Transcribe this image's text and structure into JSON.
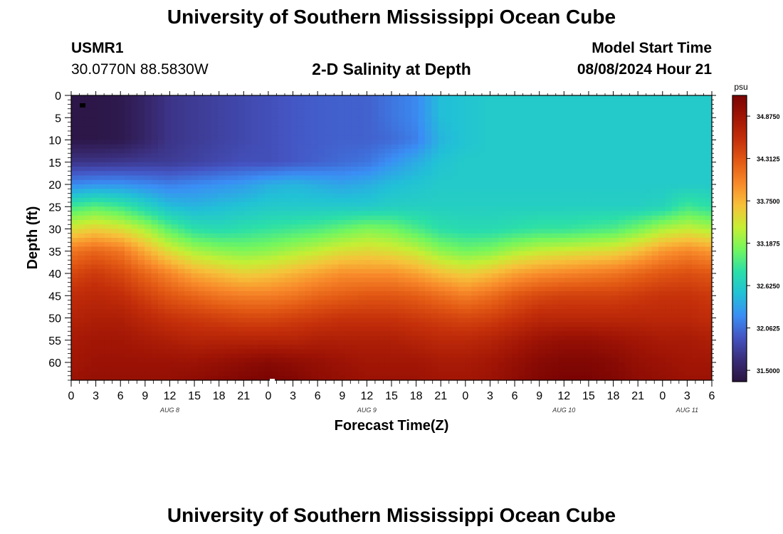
{
  "page": {
    "title": "University of Southern Mississippi Ocean Cube",
    "title_bottom": "University of Southern Mississippi Ocean Cube",
    "station_id": "USMR1",
    "station_coords": "30.0770N  88.5830W",
    "model_start_label": "Model Start Time",
    "model_start_value": "08/08/2024 Hour 21"
  },
  "chart_data": {
    "type": "heatmap",
    "title": "2-D Salinity at Depth",
    "xlabel": "Forecast Time(Z)",
    "ylabel": "Depth (ft)",
    "x_ticks": [
      "0",
      "3",
      "6",
      "9",
      "12",
      "15",
      "18",
      "21",
      "0",
      "3",
      "6",
      "9",
      "12",
      "15",
      "18",
      "21",
      "0",
      "3",
      "6",
      "9",
      "12",
      "15",
      "18",
      "21",
      "0",
      "3",
      "6"
    ],
    "x_range_hours": [
      0,
      78
    ],
    "day_labels": [
      {
        "label": "AUG 8",
        "hour": 12
      },
      {
        "label": "AUG 9",
        "hour": 36
      },
      {
        "label": "AUG 10",
        "hour": 60
      },
      {
        "label": "AUG 11",
        "hour": 75
      }
    ],
    "y_ticks": [
      0,
      5,
      10,
      15,
      20,
      25,
      30,
      35,
      40,
      45,
      50,
      55,
      60
    ],
    "ylim": [
      0,
      64
    ],
    "y_inverted": true,
    "colorbar": {
      "unit": "psu",
      "ticks": [
        "34.8750",
        "34.3125",
        "33.7500",
        "33.1875",
        "32.6250",
        "32.0625",
        "31.5000"
      ],
      "range": [
        31.35,
        35.15
      ],
      "colors": [
        "#2a133f",
        "#3a2d7a",
        "#4454c2",
        "#3a8ef5",
        "#21c1d6",
        "#2bdfa8",
        "#73f65e",
        "#c5ef34",
        "#f7c13a",
        "#f8892a",
        "#e35a14",
        "#c5300a",
        "#a11505",
        "#7a0403"
      ]
    },
    "series": [
      {
        "name": "salinity_psu",
        "x_hours": [
          0,
          3,
          6,
          9,
          12,
          15,
          18,
          21,
          24,
          27,
          30,
          33,
          36,
          39,
          42,
          45,
          48,
          51,
          54,
          57,
          60,
          63,
          66,
          69,
          72,
          75,
          78
        ],
        "depths_ft": [
          0,
          5,
          10,
          15,
          20,
          25,
          30,
          35,
          40,
          45,
          50,
          55,
          60,
          64
        ],
        "values": [
          [
            31.4,
            31.4,
            31.42,
            31.55,
            31.7,
            31.75,
            31.8,
            31.85,
            31.9,
            31.95,
            31.98,
            32.0,
            32.0,
            32.1,
            32.2,
            32.5,
            32.55,
            32.6,
            32.6,
            32.6,
            32.6,
            32.6,
            32.6,
            32.6,
            32.6,
            32.6,
            32.6
          ],
          [
            31.4,
            31.4,
            31.42,
            31.55,
            31.7,
            31.75,
            31.8,
            31.85,
            31.9,
            31.95,
            31.98,
            32.0,
            32.0,
            32.1,
            32.2,
            32.5,
            32.55,
            32.6,
            32.6,
            32.6,
            32.6,
            32.6,
            32.6,
            32.6,
            32.6,
            32.6,
            32.6
          ],
          [
            31.4,
            31.4,
            31.42,
            31.55,
            31.7,
            31.75,
            31.8,
            31.85,
            31.9,
            31.95,
            31.98,
            32.0,
            32.0,
            32.05,
            32.15,
            32.45,
            32.55,
            32.6,
            32.6,
            32.6,
            32.6,
            32.6,
            32.6,
            32.6,
            32.6,
            32.6,
            32.6
          ],
          [
            31.7,
            31.7,
            31.72,
            31.75,
            31.75,
            31.8,
            31.85,
            31.9,
            31.9,
            31.95,
            32.0,
            32.05,
            32.1,
            32.25,
            32.4,
            32.55,
            32.6,
            32.6,
            32.6,
            32.6,
            32.6,
            32.6,
            32.6,
            32.6,
            32.6,
            32.6,
            32.6
          ],
          [
            32.2,
            32.25,
            32.25,
            32.2,
            32.15,
            32.2,
            32.25,
            32.3,
            32.4,
            32.45,
            32.4,
            32.35,
            32.4,
            32.5,
            32.55,
            32.6,
            32.6,
            32.6,
            32.6,
            32.6,
            32.6,
            32.6,
            32.6,
            32.6,
            32.6,
            32.6,
            32.6
          ],
          [
            32.9,
            33.0,
            32.9,
            32.7,
            32.5,
            32.45,
            32.5,
            32.55,
            32.6,
            32.6,
            32.6,
            32.6,
            32.6,
            32.65,
            32.65,
            32.65,
            32.65,
            32.65,
            32.65,
            32.65,
            32.65,
            32.65,
            32.65,
            32.65,
            32.7,
            32.9,
            32.8
          ],
          [
            33.5,
            33.6,
            33.5,
            33.3,
            33.0,
            32.8,
            32.75,
            32.8,
            32.85,
            32.9,
            32.95,
            33.05,
            33.15,
            33.1,
            32.95,
            32.8,
            32.75,
            32.75,
            32.8,
            32.85,
            32.85,
            32.9,
            32.95,
            33.1,
            33.3,
            33.4,
            33.3
          ],
          [
            34.1,
            34.2,
            34.1,
            33.8,
            33.5,
            33.3,
            33.2,
            33.15,
            33.2,
            33.3,
            33.4,
            33.5,
            33.55,
            33.5,
            33.4,
            33.2,
            33.1,
            33.15,
            33.3,
            33.4,
            33.45,
            33.5,
            33.55,
            33.7,
            33.9,
            34.0,
            33.9
          ],
          [
            34.4,
            34.5,
            34.4,
            34.2,
            34.0,
            33.8,
            33.7,
            33.6,
            33.65,
            33.75,
            33.85,
            33.95,
            33.95,
            33.95,
            33.85,
            33.7,
            33.6,
            33.7,
            33.85,
            33.95,
            34.0,
            34.05,
            34.1,
            34.2,
            34.3,
            34.35,
            34.3
          ],
          [
            34.6,
            34.65,
            34.6,
            34.45,
            34.3,
            34.2,
            34.1,
            34.05,
            34.05,
            34.1,
            34.2,
            34.25,
            34.3,
            34.3,
            34.25,
            34.15,
            34.05,
            34.15,
            34.3,
            34.4,
            34.45,
            34.45,
            34.45,
            34.5,
            34.55,
            34.55,
            34.5
          ],
          [
            34.7,
            34.75,
            34.75,
            34.65,
            34.55,
            34.5,
            34.45,
            34.4,
            34.4,
            34.45,
            34.5,
            34.55,
            34.55,
            34.55,
            34.5,
            34.45,
            34.4,
            34.45,
            34.55,
            34.65,
            34.65,
            34.65,
            34.65,
            34.65,
            34.65,
            34.65,
            34.6
          ],
          [
            34.8,
            34.85,
            34.85,
            34.8,
            34.75,
            34.7,
            34.7,
            34.7,
            34.7,
            34.7,
            34.75,
            34.75,
            34.75,
            34.75,
            34.7,
            34.65,
            34.65,
            34.7,
            34.8,
            34.9,
            34.95,
            34.95,
            34.9,
            34.85,
            34.8,
            34.8,
            34.75
          ],
          [
            34.85,
            34.9,
            34.9,
            34.9,
            34.9,
            34.9,
            34.95,
            35.0,
            35.05,
            35.0,
            34.95,
            34.9,
            34.85,
            34.85,
            34.85,
            34.8,
            34.8,
            34.85,
            34.95,
            35.05,
            35.1,
            35.1,
            35.05,
            34.95,
            34.9,
            34.85,
            34.85
          ],
          [
            34.9,
            34.95,
            34.95,
            34.95,
            34.95,
            35.0,
            35.05,
            35.1,
            35.15,
            35.1,
            35.0,
            34.95,
            34.9,
            34.9,
            34.9,
            34.85,
            34.85,
            34.9,
            35.0,
            35.1,
            35.15,
            35.15,
            35.1,
            35.0,
            34.95,
            34.9,
            34.9
          ]
        ]
      }
    ]
  }
}
